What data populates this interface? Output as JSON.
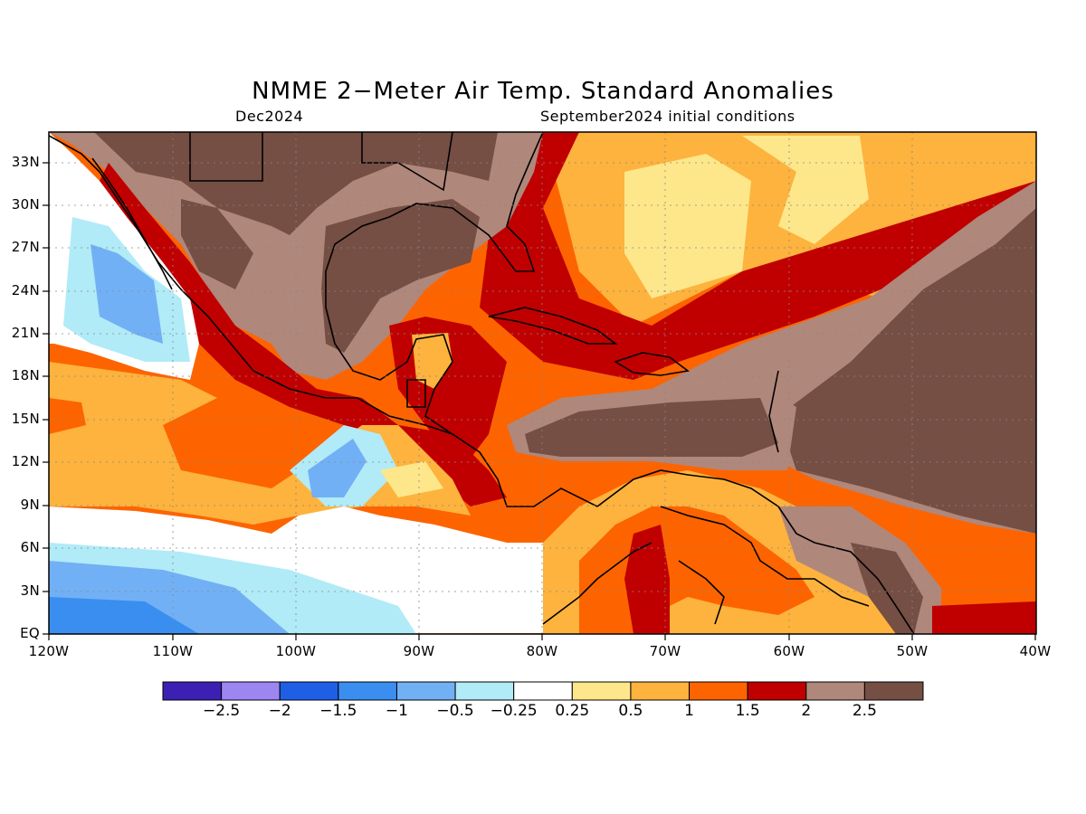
{
  "title": "NMME 2−Meter Air Temp. Standard Anomalies",
  "valid_month": "Dec2024",
  "init_conditions": "September2024 initial conditions",
  "lat_labels": [
    "33N",
    "30N",
    "27N",
    "24N",
    "21N",
    "18N",
    "15N",
    "12N",
    "9N",
    "6N",
    "3N",
    "EQ"
  ],
  "lon_labels": [
    "120W",
    "110W",
    "100W",
    "90W",
    "80W",
    "70W",
    "60W",
    "50W",
    "40W"
  ],
  "colorbar": {
    "colors": [
      "#3c20b4",
      "#9d86f2",
      "#1e5fe6",
      "#3a8ef0",
      "#72b0f5",
      "#b1ebf7",
      "#ffffff",
      "#fee78b",
      "#fdb33d",
      "#fd6400",
      "#c00000",
      "#b0877b",
      "#754e44"
    ],
    "labels": [
      "−2.5",
      "−2",
      "−1.5",
      "−1",
      "−0.5",
      "−0.25",
      "0.25",
      "0.5",
      "1",
      "1.5",
      "2",
      "2.5"
    ]
  },
  "map_regions": {
    "land_anomaly_top": "2.5",
    "caribbean_interior": "2.5",
    "gulf_of_mexico": "2.5",
    "baja_offshore": "-1",
    "eastern_pacific_equatorial": "-1",
    "south_america_north": "1.5"
  }
}
